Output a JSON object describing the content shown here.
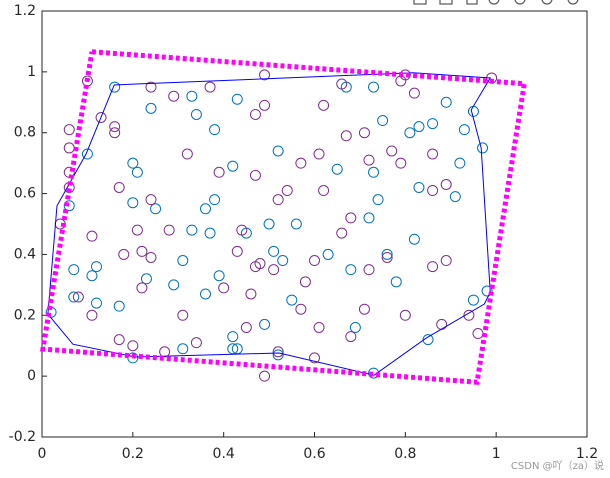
{
  "chart_data": {
    "type": "scatter",
    "xlim": [
      0,
      1.2
    ],
    "ylim": [
      -0.2,
      1.2
    ],
    "xticks": [
      0,
      0.2,
      0.4,
      0.6,
      0.8,
      1,
      1.2
    ],
    "yticks": [
      -0.2,
      0,
      0.2,
      0.4,
      0.6,
      0.8,
      1,
      1.2
    ],
    "watermark": "CSDN @吖（za）说",
    "series": [
      {
        "type": "scatter",
        "color": "#0072BD",
        "x": [
          0.16,
          0.33,
          0.34,
          0.24,
          0.38,
          0.43,
          0.52,
          0.42,
          0.67,
          0.73,
          0.75,
          0.81,
          0.83,
          0.86,
          0.89,
          0.93,
          0.95,
          0.97,
          0.83,
          0.92,
          0.91,
          0.74,
          0.65,
          0.73,
          0.2,
          0.21,
          0.2,
          0.25,
          0.36,
          0.38,
          0.33,
          0.37,
          0.45,
          0.51,
          0.53,
          0.5,
          0.56,
          0.63,
          0.68,
          0.72,
          0.76,
          0.82,
          0.07,
          0.12,
          0.11,
          0.07,
          0.12,
          0.17,
          0.23,
          0.29,
          0.31,
          0.39,
          0.36,
          0.42,
          0.42,
          0.49,
          0.52,
          0.55,
          0.31,
          0.43,
          0.69,
          0.78,
          0.85,
          0.73,
          0.98,
          0.95,
          0.2,
          0.06,
          0.1,
          0.02
        ],
        "values": [
          0.95,
          0.92,
          0.86,
          0.88,
          0.81,
          0.91,
          0.74,
          0.69,
          0.95,
          0.95,
          0.84,
          0.8,
          0.82,
          0.83,
          0.9,
          0.81,
          0.87,
          0.75,
          0.62,
          0.7,
          0.59,
          0.58,
          0.68,
          0.67,
          0.7,
          0.67,
          0.57,
          0.55,
          0.55,
          0.58,
          0.48,
          0.47,
          0.47,
          0.41,
          0.38,
          0.5,
          0.5,
          0.4,
          0.35,
          0.52,
          0.4,
          0.45,
          0.35,
          0.36,
          0.33,
          0.26,
          0.24,
          0.23,
          0.32,
          0.3,
          0.38,
          0.33,
          0.27,
          0.13,
          0.09,
          0.17,
          0.07,
          0.25,
          0.09,
          0.09,
          0.16,
          0.31,
          0.12,
          0.01,
          0.28,
          0.25,
          0.06,
          0.56,
          0.73,
          0.21
        ]
      },
      {
        "type": "scatter",
        "color": "#7E2F8E",
        "x": [
          0.1,
          0.24,
          0.29,
          0.37,
          0.49,
          0.62,
          0.66,
          0.79,
          0.8,
          0.82,
          0.99,
          0.47,
          0.49,
          0.16,
          0.16,
          0.13,
          0.06,
          0.06,
          0.32,
          0.57,
          0.61,
          0.67,
          0.71,
          0.72,
          0.77,
          0.79,
          0.86,
          0.89,
          0.86,
          0.54,
          0.52,
          0.62,
          0.47,
          0.39,
          0.17,
          0.24,
          0.06,
          0.06,
          0.11,
          0.21,
          0.22,
          0.24,
          0.28,
          0.43,
          0.44,
          0.48,
          0.51,
          0.58,
          0.6,
          0.66,
          0.68,
          0.72,
          0.76,
          0.86,
          0.89,
          0.08,
          0.18,
          0.22,
          0.31,
          0.4,
          0.46,
          0.47,
          0.57,
          0.61,
          0.68,
          0.71,
          0.8,
          0.88,
          0.94,
          0.96,
          0.17,
          0.2,
          0.27,
          0.34,
          0.45,
          0.49,
          0.52,
          0.6,
          0.04,
          0.11
        ],
        "values": [
          0.97,
          0.95,
          0.92,
          0.95,
          0.99,
          0.89,
          0.96,
          0.97,
          0.99,
          0.93,
          0.98,
          0.86,
          0.89,
          0.82,
          0.8,
          0.85,
          0.81,
          0.75,
          0.73,
          0.7,
          0.73,
          0.79,
          0.8,
          0.71,
          0.74,
          0.7,
          0.73,
          0.63,
          0.61,
          0.61,
          0.58,
          0.61,
          0.66,
          0.67,
          0.62,
          0.58,
          0.62,
          0.67,
          0.46,
          0.48,
          0.41,
          0.39,
          0.48,
          0.41,
          0.48,
          0.37,
          0.35,
          0.31,
          0.38,
          0.47,
          0.52,
          0.35,
          0.39,
          0.36,
          0.38,
          0.26,
          0.4,
          0.29,
          0.2,
          0.29,
          0.27,
          0.36,
          0.22,
          0.16,
          0.13,
          0.22,
          0.2,
          0.17,
          0.2,
          0.14,
          0.12,
          0.1,
          0.08,
          0.11,
          0.16,
          0.0,
          0.08,
          0.06,
          0.5,
          0.2
        ]
      },
      {
        "type": "line",
        "color": "#0000FF",
        "style": "solid",
        "x": [
          0.013,
          0.033,
          0.097,
          0.159,
          0.817,
          0.987,
          0.945,
          0.967,
          0.987,
          0.974,
          0.846,
          0.731,
          0.522,
          0.205,
          0.068,
          0.013
        ],
        "values": [
          0.204,
          0.56,
          0.73,
          0.957,
          0.997,
          0.98,
          0.875,
          0.75,
          0.276,
          0.237,
          0.125,
          0.003,
          0.076,
          0.063,
          0.105,
          0.204
        ]
      },
      {
        "type": "line",
        "color": "#FF00FF",
        "style": "dotted",
        "x": [
          0.11,
          1.062,
          0.958,
          0.002,
          0.11
        ],
        "values": [
          1.066,
          0.961,
          -0.02,
          0.089,
          1.066
        ]
      }
    ]
  }
}
